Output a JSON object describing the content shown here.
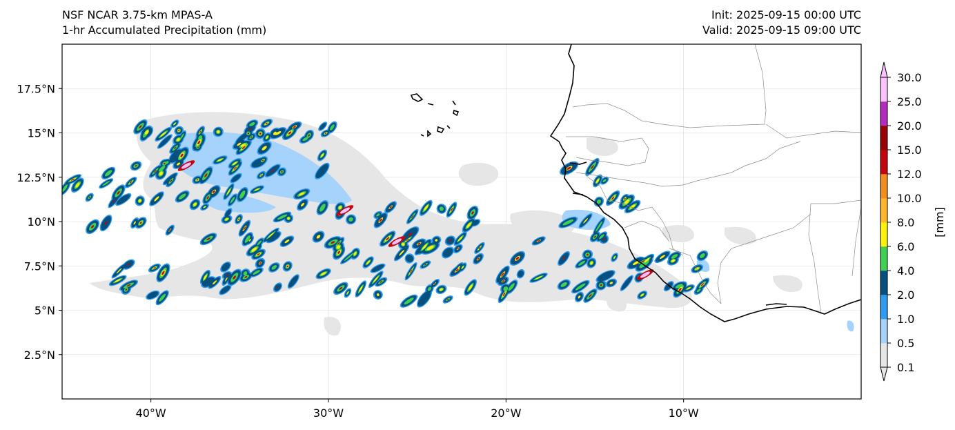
{
  "header": {
    "model": "NSF NCAR 3.75-km MPAS-A",
    "field": "1-hr Accumulated Precipitation (mm)",
    "init": "Init: 2025-09-15 00:00 UTC",
    "valid": "Valid: 2025-09-15 09:00 UTC"
  },
  "map": {
    "lon_range": [
      -45,
      0
    ],
    "lat_range": [
      0,
      20
    ],
    "lon_ticks": [
      {
        "value": -40,
        "label": "40°W"
      },
      {
        "value": -30,
        "label": "30°W"
      },
      {
        "value": -20,
        "label": "20°W"
      },
      {
        "value": -10,
        "label": "10°W"
      }
    ],
    "lat_ticks": [
      {
        "value": 17.5,
        "label": "17.5°N"
      },
      {
        "value": 15,
        "label": "15°N"
      },
      {
        "value": 12.5,
        "label": "12.5°N"
      },
      {
        "value": 10,
        "label": "10°N"
      },
      {
        "value": 7.5,
        "label": "7.5°N"
      },
      {
        "value": 5,
        "label": "5°N"
      },
      {
        "value": 2.5,
        "label": "2.5°N"
      }
    ],
    "colorbar": {
      "unit_label": "[mm]",
      "levels": [
        "0.1",
        "0.5",
        "1.0",
        "2.0",
        "4.0",
        "6.0",
        "8.0",
        "10.0",
        "12.0",
        "15.0",
        "20.0",
        "25.0",
        "30.0"
      ],
      "colors": [
        "#e6e6e6",
        "#a5d3fb",
        "#2e9cf0",
        "#06507f",
        "#40d153",
        "#fff10a",
        "#ffb62b",
        "#f08d1f",
        "#c4050c",
        "#970106",
        "#b32bbd",
        "#fcc2ff"
      ]
    },
    "coastline_color": "#000000",
    "border_color": "#8c8c8c",
    "gridline_color": "#d9d9d9"
  }
}
